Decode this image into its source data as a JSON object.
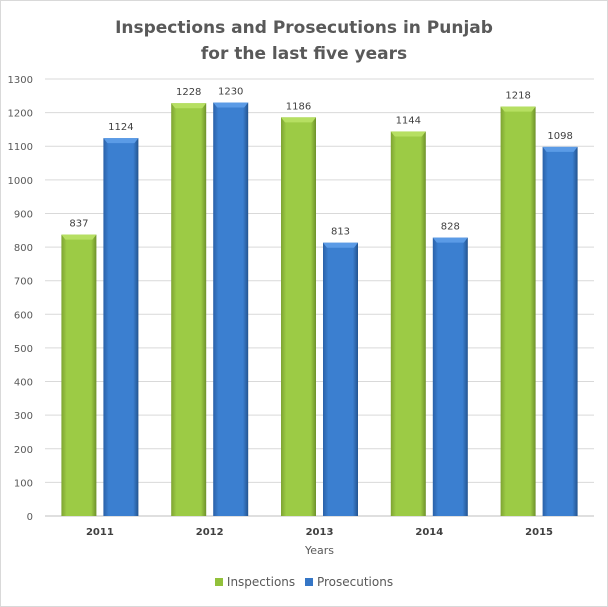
{
  "chart_data": {
    "type": "bar",
    "title": "Inspections and Prosecutions in Punjab",
    "subtitle": "for the last five years",
    "xlabel": "Years",
    "ylabel": "",
    "categories": [
      "2011",
      "2012",
      "2013",
      "2014",
      "2015"
    ],
    "series": [
      {
        "name": "Inspections",
        "color": "#92c13b",
        "values": [
          837,
          1228,
          1186,
          1144,
          1218
        ]
      },
      {
        "name": "Prosecutions",
        "color": "#3576c6",
        "values": [
          1124,
          1230,
          813,
          828,
          1098
        ]
      }
    ],
    "ylim": [
      0,
      1300
    ],
    "yticks": [
      0,
      100,
      200,
      300,
      400,
      500,
      600,
      700,
      800,
      900,
      1000,
      1100,
      1200,
      1300
    ],
    "grid": true,
    "legend": "bottom",
    "data_labels": true
  }
}
